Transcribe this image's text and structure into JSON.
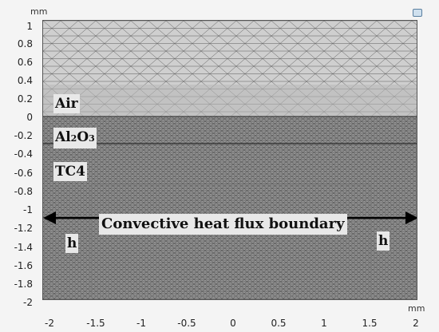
{
  "toolbar": {
    "icon": "zoom-extents-icon"
  },
  "axes": {
    "y_unit": "mm",
    "x_unit": "mm",
    "y_ticks": [
      "1",
      "0.8",
      "0.6",
      "0.4",
      "0.2",
      "0",
      "-0.2",
      "-0.4",
      "-0.6",
      "-0.8",
      "-1",
      "-1.2",
      "-1.4",
      "-1.6",
      "-1.8",
      "-2"
    ],
    "x_ticks": [
      "-2",
      "-1.5",
      "-1",
      "-0.5",
      "0",
      "0.5",
      "1",
      "1.5",
      "2"
    ]
  },
  "regions": {
    "air": "Air",
    "al2o3_al": "Al",
    "al2o3_sub2": "2",
    "al2o3_o": "O",
    "al2o3_sub3": "3",
    "tc4": "TC4"
  },
  "annotations": {
    "boundary": "Convective heat flux boundary",
    "h_left": "h",
    "h_right": "h"
  },
  "colors": {
    "air_mesh": "#cfcfcf",
    "solid_mesh": "#979797",
    "mesh_lines": "#3c3c3c"
  }
}
